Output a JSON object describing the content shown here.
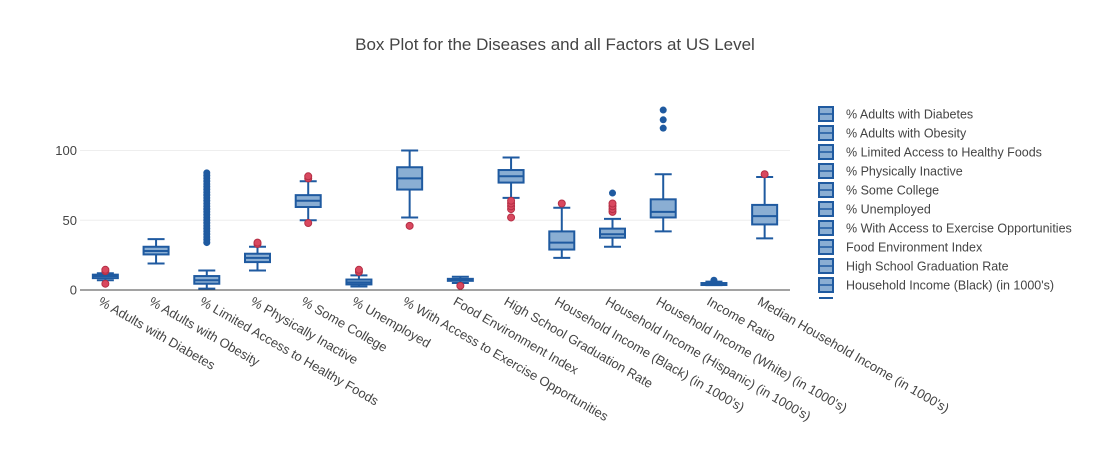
{
  "chart_data": {
    "type": "box",
    "title": "Box Plot for the Diseases and all Factors at US Level",
    "ylim": [
      0,
      140
    ],
    "yticks": [
      0,
      50,
      100
    ],
    "grid": true,
    "legend": "right",
    "colors": {
      "box_fill": "#8aaed3",
      "box_line": "#1f5aa0",
      "outlier_red": "#d9485f",
      "outlier_blue": "#1f5aa0"
    },
    "categories": [
      "% Adults with Diabetes",
      "% Adults with Obesity",
      "% Limited Access to Healthy Foods",
      "% Physically Inactive",
      "% Some College",
      "% Unemployed",
      "% With Access to Exercise Opportunities",
      "Food Environment Index",
      "High School Graduation Rate",
      "Household Income (Black) (in 1000's)",
      "Household Income (Hispanic) (in 1000's)",
      "Household Income (White) (in 1000's)",
      "Income Ratio",
      "Median Household Income (in 1000's)"
    ],
    "boxes": [
      {
        "min": 7,
        "q1": 8.5,
        "median": 10,
        "q3": 11,
        "max": 12,
        "outliers": [
          4.5,
          13.5,
          14.5
        ],
        "outlier_color": "red"
      },
      {
        "min": 19,
        "q1": 25.5,
        "median": 28,
        "q3": 31,
        "max": 36.5,
        "outliers": [],
        "outlier_color": "blue"
      },
      {
        "min": 1,
        "q1": 4.5,
        "median": 7,
        "q3": 10,
        "max": 14,
        "outliers": [
          34,
          36,
          38,
          40,
          42,
          44,
          46,
          48,
          50,
          52,
          54,
          56,
          58,
          60,
          62,
          64,
          66,
          68,
          70,
          72,
          74,
          76,
          78,
          80,
          82,
          84
        ],
        "outlier_color": "blue"
      },
      {
        "min": 14,
        "q1": 20,
        "median": 23,
        "q3": 26,
        "max": 31,
        "outliers": [
          33,
          34
        ],
        "outlier_color": "red"
      },
      {
        "min": 50,
        "q1": 59.5,
        "median": 64,
        "q3": 68,
        "max": 78,
        "outliers": [
          48,
          80,
          81.5
        ],
        "outlier_color": "red"
      },
      {
        "min": 2.5,
        "q1": 4,
        "median": 5.5,
        "q3": 7.5,
        "max": 10.5,
        "outliers": [
          13,
          14.5
        ],
        "outlier_color": "red"
      },
      {
        "min": 52,
        "q1": 72,
        "median": 80,
        "q3": 88,
        "max": 100,
        "outliers": [
          46
        ],
        "outlier_color": "red"
      },
      {
        "min": 5,
        "q1": 7,
        "median": 7.5,
        "q3": 8,
        "max": 9.5,
        "outliers": [
          3
        ],
        "outlier_color": "red"
      },
      {
        "min": 66,
        "q1": 77,
        "median": 81.5,
        "q3": 86,
        "max": 95,
        "outliers": [
          52,
          58,
          60,
          62,
          64
        ],
        "outlier_color": "red"
      },
      {
        "min": 23,
        "q1": 29,
        "median": 34,
        "q3": 42,
        "max": 59,
        "outliers": [
          62
        ],
        "outlier_color": "red"
      },
      {
        "min": 31,
        "q1": 37.5,
        "median": 40,
        "q3": 44,
        "max": 51,
        "outliers": [
          56,
          58,
          60,
          62,
          69.5
        ],
        "outlier_color": "mixed"
      },
      {
        "min": 42,
        "q1": 52,
        "median": 56,
        "q3": 65,
        "max": 83,
        "outliers": [
          116,
          122,
          129
        ],
        "outlier_color": "blue"
      },
      {
        "min": 3.5,
        "q1": 4,
        "median": 4.5,
        "q3": 5,
        "max": 6,
        "outliers": [
          7
        ],
        "outlier_color": "blue"
      },
      {
        "min": 37,
        "q1": 47,
        "median": 53,
        "q3": 61,
        "max": 81,
        "outliers": [
          83
        ],
        "outlier_color": "red"
      }
    ],
    "legend_entries": [
      "% Adults with Diabetes",
      "% Adults with Obesity",
      "% Limited Access to Healthy Foods",
      "% Physically Inactive",
      "% Some College",
      "% Unemployed",
      "% With Access to Exercise Opportunities",
      "Food Environment Index",
      "High School Graduation Rate",
      "Household Income (Black) (in 1000's)"
    ]
  }
}
